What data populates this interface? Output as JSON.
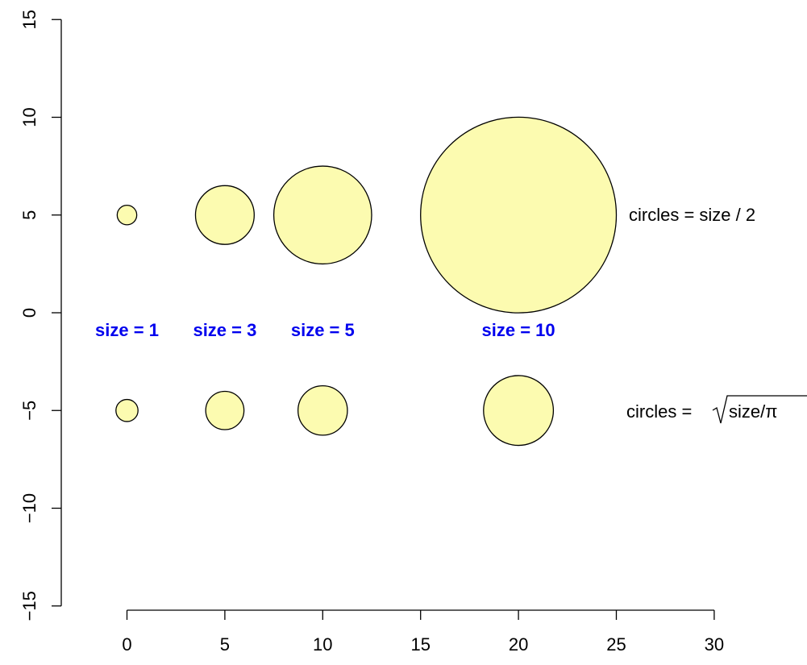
{
  "chart_data": {
    "type": "scatter",
    "title": "",
    "xlabel": "",
    "ylabel": "",
    "xlim": [
      0,
      30
    ],
    "ylim": [
      -15,
      15
    ],
    "x_ticks": [
      0,
      5,
      10,
      15,
      20,
      25,
      30
    ],
    "y_ticks": [
      -15,
      -10,
      -5,
      0,
      5,
      10,
      15
    ],
    "x_tick_labels": [
      "0",
      "5",
      "10",
      "15",
      "20",
      "25",
      "30"
    ],
    "y_tick_labels": [
      "−15",
      "−10",
      "−5",
      "0",
      "5",
      "10",
      "15"
    ],
    "grid": false,
    "fill_color": "#fcfbb0",
    "edge_color": "#000000",
    "label_color": "#0000ee",
    "points": [
      {
        "x": 0,
        "size": 1,
        "label": "size = 1"
      },
      {
        "x": 5,
        "size": 3,
        "label": "size = 3"
      },
      {
        "x": 10,
        "size": 5,
        "label": "size = 5"
      },
      {
        "x": 20,
        "size": 10,
        "label": "size = 10"
      }
    ],
    "rows": [
      {
        "y": 5,
        "radius_rule": "half",
        "annotation": "circles = size / 2"
      },
      {
        "y": -5,
        "radius_rule": "sqrt_over_pi",
        "annotation_prefix": "circles = ",
        "annotation_sqrt": "size/π"
      }
    ],
    "size_label_y": -1.2
  }
}
